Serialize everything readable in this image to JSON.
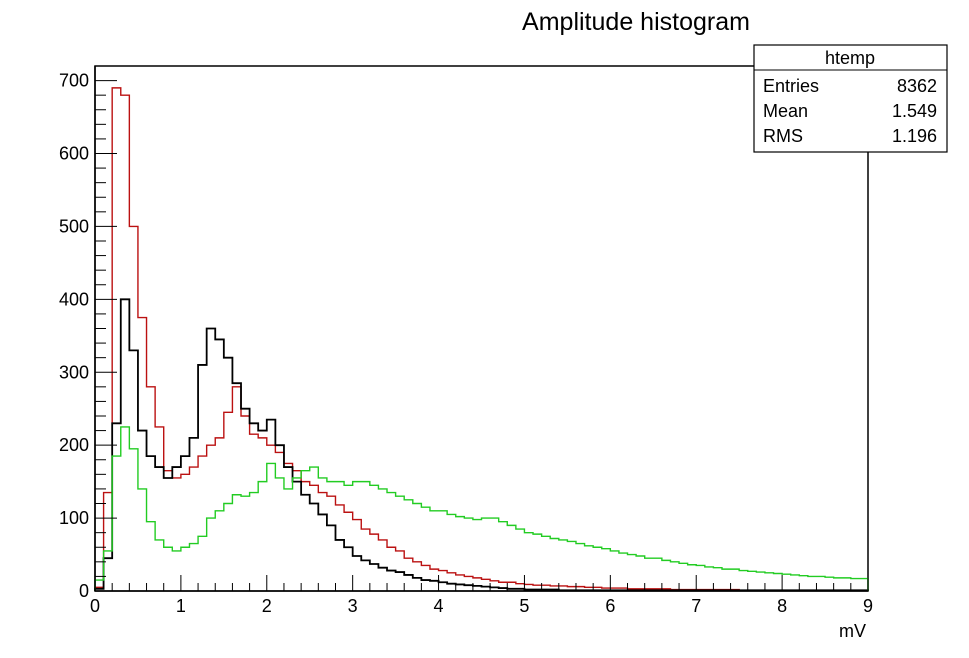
{
  "chart_data": {
    "type": "histogram",
    "title": "Amplitude histogram",
    "xlabel": "mV",
    "ylabel": "",
    "xlim": [
      0,
      9
    ],
    "ylim": [
      0,
      720
    ],
    "x_ticks": [
      "0",
      "1",
      "2",
      "3",
      "4",
      "5",
      "6",
      "7",
      "8",
      "9"
    ],
    "y_ticks": [
      "0",
      "100",
      "200",
      "300",
      "400",
      "500",
      "600",
      "700"
    ],
    "bin_width": 0.1,
    "grid": false,
    "stats_box": {
      "name": "htemp",
      "rows": [
        {
          "label": "Entries",
          "value": "8362"
        },
        {
          "label": "Mean",
          "value": "1.549"
        },
        {
          "label": "RMS",
          "value": "1.196"
        }
      ]
    },
    "series": [
      {
        "color": "#bb1111",
        "values": [
          5,
          135,
          690,
          680,
          500,
          375,
          280,
          225,
          165,
          155,
          160,
          170,
          185,
          200,
          210,
          245,
          280,
          240,
          215,
          210,
          200,
          190,
          175,
          165,
          150,
          145,
          135,
          130,
          118,
          108,
          98,
          85,
          78,
          70,
          60,
          55,
          45,
          40,
          35,
          30,
          28,
          25,
          22,
          20,
          18,
          16,
          14,
          12,
          12,
          10,
          9,
          8,
          8,
          7,
          7,
          6,
          6,
          5,
          5,
          4,
          4,
          4,
          3,
          3,
          3,
          3,
          3,
          2,
          2,
          2,
          2,
          2,
          2,
          2,
          2,
          1,
          1,
          1,
          1,
          1,
          1,
          1,
          1,
          1,
          1,
          1,
          1,
          1,
          1,
          1
        ]
      },
      {
        "color": "#000000",
        "values": [
          3,
          45,
          230,
          400,
          330,
          220,
          185,
          170,
          155,
          170,
          185,
          210,
          310,
          360,
          345,
          320,
          285,
          250,
          230,
          220,
          235,
          200,
          170,
          150,
          132,
          120,
          105,
          90,
          70,
          60,
          48,
          42,
          37,
          32,
          28,
          26,
          22,
          18,
          15,
          14,
          12,
          10,
          9,
          8,
          7,
          6,
          5,
          4,
          3,
          3,
          2,
          2,
          2,
          2,
          1,
          1,
          1,
          1,
          1,
          1,
          1,
          1,
          1,
          1,
          1,
          1,
          1,
          1,
          1,
          1,
          1,
          1,
          1,
          1,
          1,
          1,
          1,
          1,
          1,
          1,
          1,
          1,
          1,
          1,
          1,
          1,
          1,
          1,
          1,
          1
        ]
      },
      {
        "color": "#22cc22",
        "values": [
          15,
          55,
          185,
          225,
          195,
          140,
          95,
          70,
          60,
          55,
          60,
          65,
          75,
          100,
          110,
          120,
          132,
          130,
          135,
          150,
          175,
          155,
          140,
          155,
          165,
          170,
          155,
          150,
          150,
          145,
          150,
          150,
          145,
          140,
          135,
          130,
          125,
          120,
          115,
          110,
          110,
          105,
          102,
          100,
          98,
          100,
          100,
          95,
          90,
          85,
          80,
          78,
          75,
          72,
          70,
          68,
          65,
          62,
          60,
          58,
          55,
          52,
          50,
          48,
          45,
          45,
          42,
          40,
          38,
          36,
          35,
          33,
          32,
          30,
          30,
          28,
          27,
          26,
          25,
          24,
          23,
          22,
          21,
          20,
          20,
          19,
          18,
          18,
          17,
          17
        ]
      }
    ]
  }
}
